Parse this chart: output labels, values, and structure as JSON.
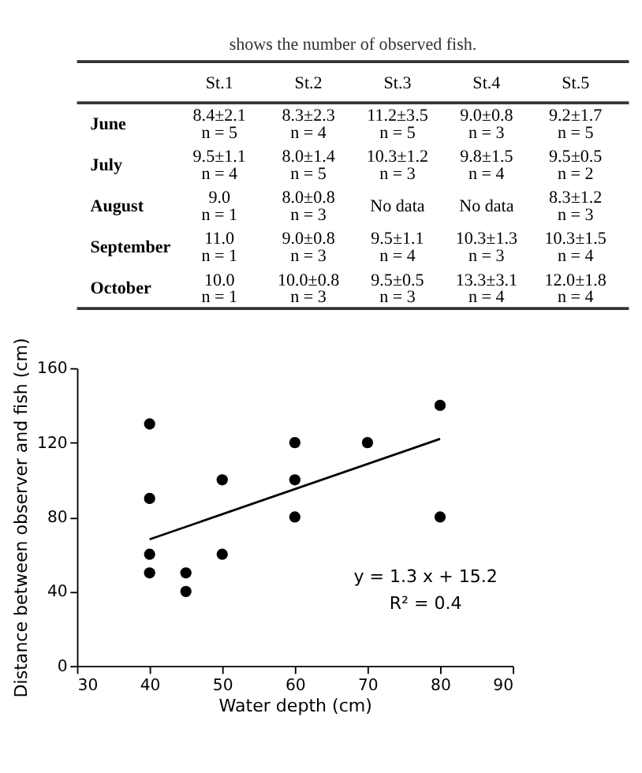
{
  "chart_data": [
    {
      "type": "other",
      "annotations": [
        "shows the number of observed fish."
      ],
      "categories": [
        "St.1",
        "St.2",
        "St.3",
        "St.4",
        "St.5"
      ],
      "y_categories": [
        "June",
        "July",
        "August",
        "September",
        "October"
      ],
      "cell_labels": [
        [
          [
            "8.4±2.1",
            "n = 5"
          ],
          [
            "8.3±2.3",
            "n = 4"
          ],
          [
            "11.2±3.5",
            "n = 5"
          ],
          [
            "9.0±0.8",
            "n = 3"
          ],
          [
            "9.2±1.7",
            "n = 5"
          ]
        ],
        [
          [
            "9.5±1.1",
            "n = 4"
          ],
          [
            "8.0±1.4",
            "n = 5"
          ],
          [
            "10.3±1.2",
            "n = 3"
          ],
          [
            "9.8±1.5",
            "n = 4"
          ],
          [
            "9.5±0.5",
            "n = 2"
          ]
        ],
        [
          [
            "9.0",
            "n = 1"
          ],
          [
            "8.0±0.8",
            "n = 3"
          ],
          [
            "No data"
          ],
          [
            "No data"
          ],
          [
            "8.3±1.2",
            "n = 3"
          ]
        ],
        [
          [
            "11.0",
            "n = 1"
          ],
          [
            "9.0±0.8",
            "n = 3"
          ],
          [
            "9.5±1.1",
            "n = 4"
          ],
          [
            "10.3±1.3",
            "n = 3"
          ],
          [
            "10.3±1.5",
            "n = 4"
          ]
        ],
        [
          [
            "10.0",
            "n = 1"
          ],
          [
            "10.0±0.8",
            "n = 3"
          ],
          [
            "9.5±0.5",
            "n = 3"
          ],
          [
            "13.3±3.1",
            "n = 4"
          ],
          [
            "12.0±1.8",
            "n = 4"
          ]
        ]
      ]
    },
    {
      "type": "scatter",
      "xlabel": "Water depth (cm)",
      "ylabel": "Distance between observer and fish (cm)",
      "xlim": [
        30,
        90
      ],
      "xticks": [
        30,
        40,
        50,
        60,
        70,
        80,
        90
      ],
      "ylim": [
        0,
        160
      ],
      "yticks": [
        0,
        40,
        80,
        120,
        160
      ],
      "grid": false,
      "series": [
        {
          "type": "scatter",
          "marker": "circle",
          "color": "#000000",
          "x": [
            40,
            40,
            40,
            40,
            45,
            45,
            50,
            50,
            60,
            60,
            60,
            70,
            80,
            80
          ],
          "values": [
            130,
            90,
            60,
            50,
            50,
            40,
            100,
            60,
            120,
            100,
            80,
            120,
            140,
            80
          ]
        },
        {
          "type": "line",
          "marker": "none",
          "color": "#000000",
          "x": [
            40,
            80
          ],
          "values": [
            68,
            122
          ]
        }
      ],
      "annotations": [
        "y = 1.3 x + 15.2",
        "R² = 0.4"
      ]
    }
  ]
}
